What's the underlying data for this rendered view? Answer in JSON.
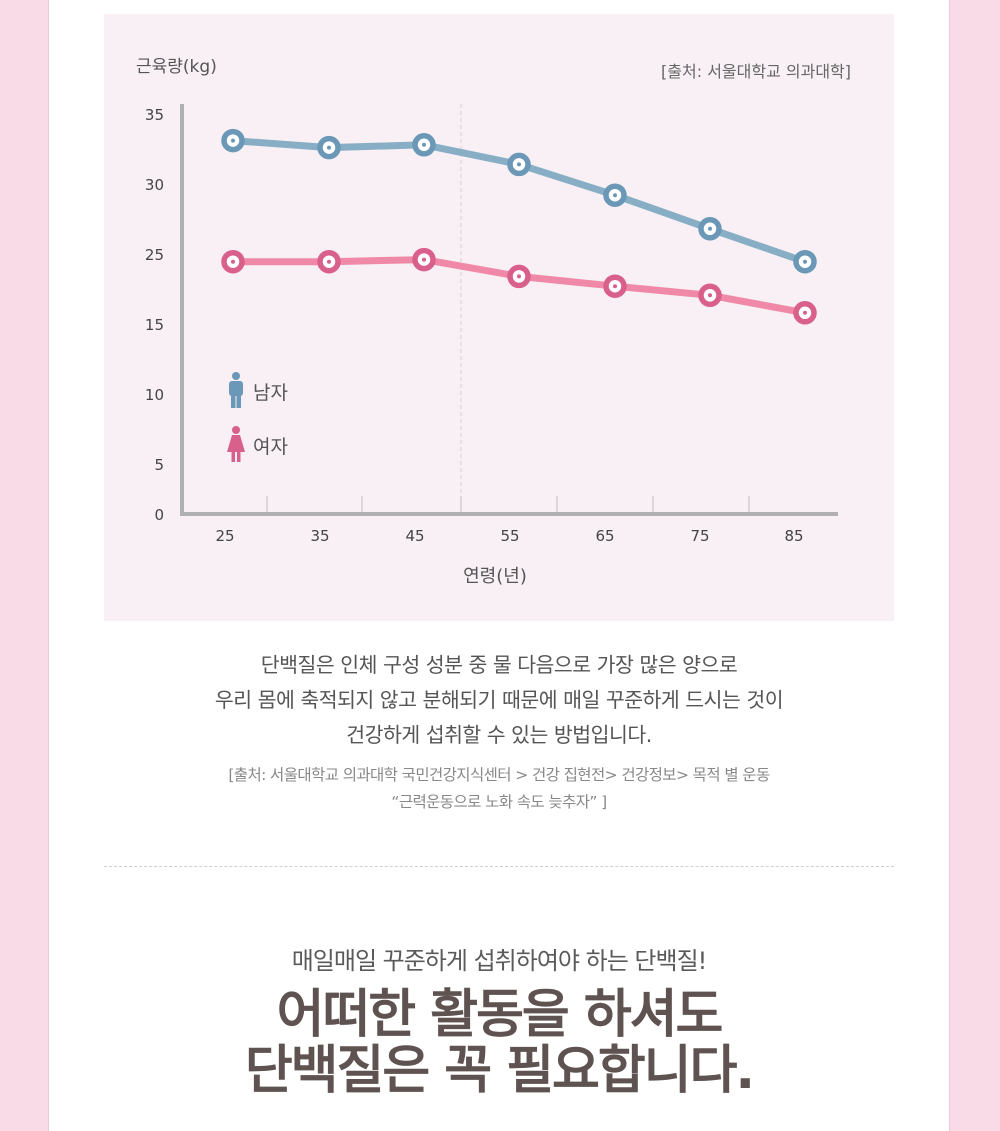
{
  "chart_data": {
    "type": "line",
    "ylabel": "근육량(kg)",
    "xlabel": "연령(년)",
    "source_note": "[출처: 서울대학교 의과대학]",
    "x": [
      25,
      35,
      45,
      55,
      65,
      75,
      85
    ],
    "y_ticks": [
      "0",
      "5",
      "10",
      "15",
      "25",
      "30",
      "35"
    ],
    "x_ticks": [
      "25",
      "35",
      "45",
      "55",
      "65",
      "75",
      "85"
    ],
    "grid": false,
    "legend_position": "bottom-left",
    "series": [
      {
        "name": "남자",
        "color": "#88aec5",
        "marker_color": "#6a98b6",
        "icon": "male-icon",
        "values": [
          33.1,
          32.6,
          32.8,
          31.4,
          29.2,
          26.8,
          23.9
        ]
      },
      {
        "name": "여자",
        "color": "#f089a8",
        "marker_color": "#d9608a",
        "icon": "female-icon",
        "values": [
          23.9,
          23.9,
          24.2,
          21.8,
          20.4,
          19.1,
          16.6
        ]
      }
    ]
  },
  "description": {
    "lines": [
      "단백질은 인체 구성 성분 중 물 다음으로 가장 많은 양으로",
      "우리 몸에 축적되지 않고 분해되기 때문에 매일 꾸준하게 드시는 것이",
      "건강하게 섭취할 수 있는 방법입니다."
    ]
  },
  "source": {
    "lines": [
      "[출처: 서울대학교 의과대학 국민건강지식센터 > 건강 집현전> 건강정보> 목적 별 운동",
      "“근력운동으로 노화 속도 늦추자” ]"
    ]
  },
  "subtitle": "매일매일 꾸준하게 섭취하여야 하는 단백질!",
  "headline": {
    "line1": "어떠한 활동을 하셔도",
    "line2": "단백질은 꼭 필요합니다."
  }
}
